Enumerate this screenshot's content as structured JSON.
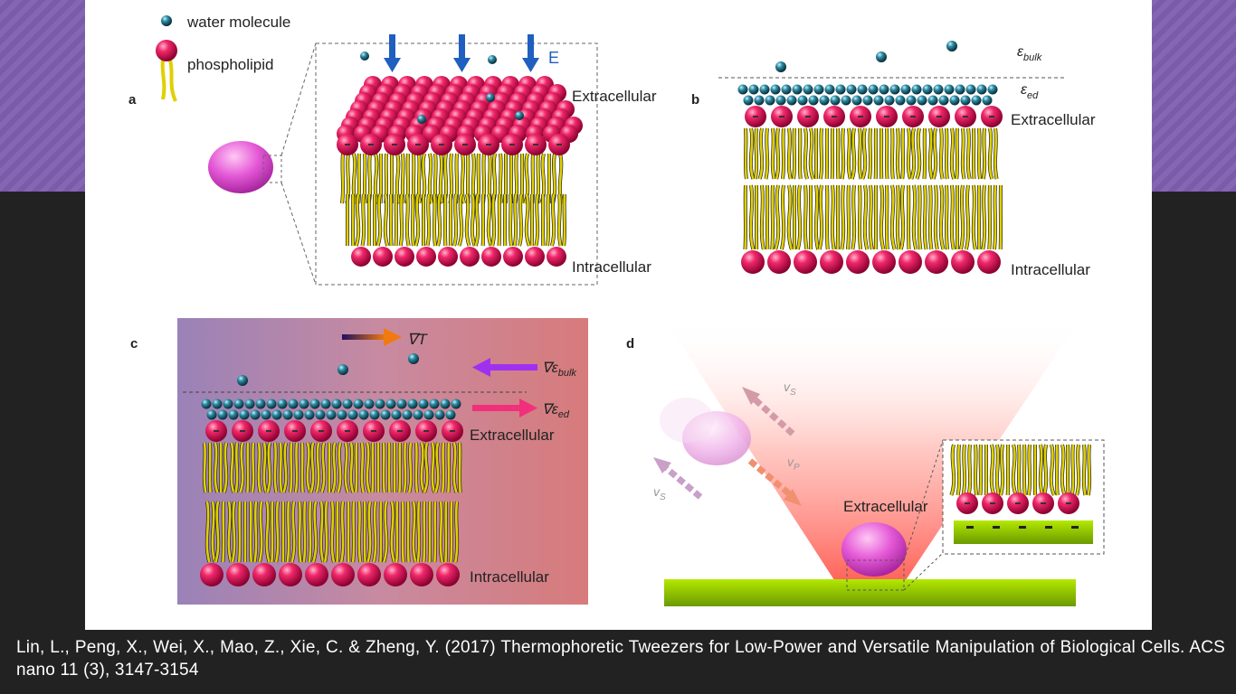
{
  "legend": {
    "water": "water molecule",
    "phospholipid": "phospholipid"
  },
  "panels": {
    "a": {
      "letter": "a",
      "field": "E",
      "top": "Extracellular",
      "bottom": "Intracellular"
    },
    "b": {
      "letter": "b",
      "eps_bulk": "ε",
      "eps_bulk_sub": "bulk",
      "eps_ed": "ε",
      "eps_ed_sub": "ed",
      "top": "Extracellular",
      "bottom": "Intracellular"
    },
    "c": {
      "letter": "c",
      "gradT": "∇T",
      "grad_bulk": "∇ε",
      "grad_bulk_sub": "bulk",
      "grad_ed": "∇ε",
      "grad_ed_sub": "ed",
      "top": "Extracellular",
      "bottom": "Intracellular"
    },
    "d": {
      "letter": "d",
      "vs1": "v",
      "vs1_sub": "S",
      "vp": "v",
      "vp_sub": "P",
      "vs2": "v",
      "vs2_sub": "S",
      "cell_label": "Extracellular"
    }
  },
  "colors": {
    "background": "#222222",
    "banner": "#8466b4",
    "lipid_head": "#e8145a",
    "lipid_tail": "#e0d000",
    "water": "#1a6a80",
    "field_arrow": "#1f5fbf",
    "substrate": "#9ad100",
    "cell": "#e04bd0"
  },
  "caption": "Lin, L., Peng, X., Wei, X., Mao, Z., Xie, C. & Zheng, Y. (2017) Thermophoretic Tweezers for Low-Power and Versatile Manipulation of Biological Cells. ACS nano 11 (3), 3147-3154"
}
